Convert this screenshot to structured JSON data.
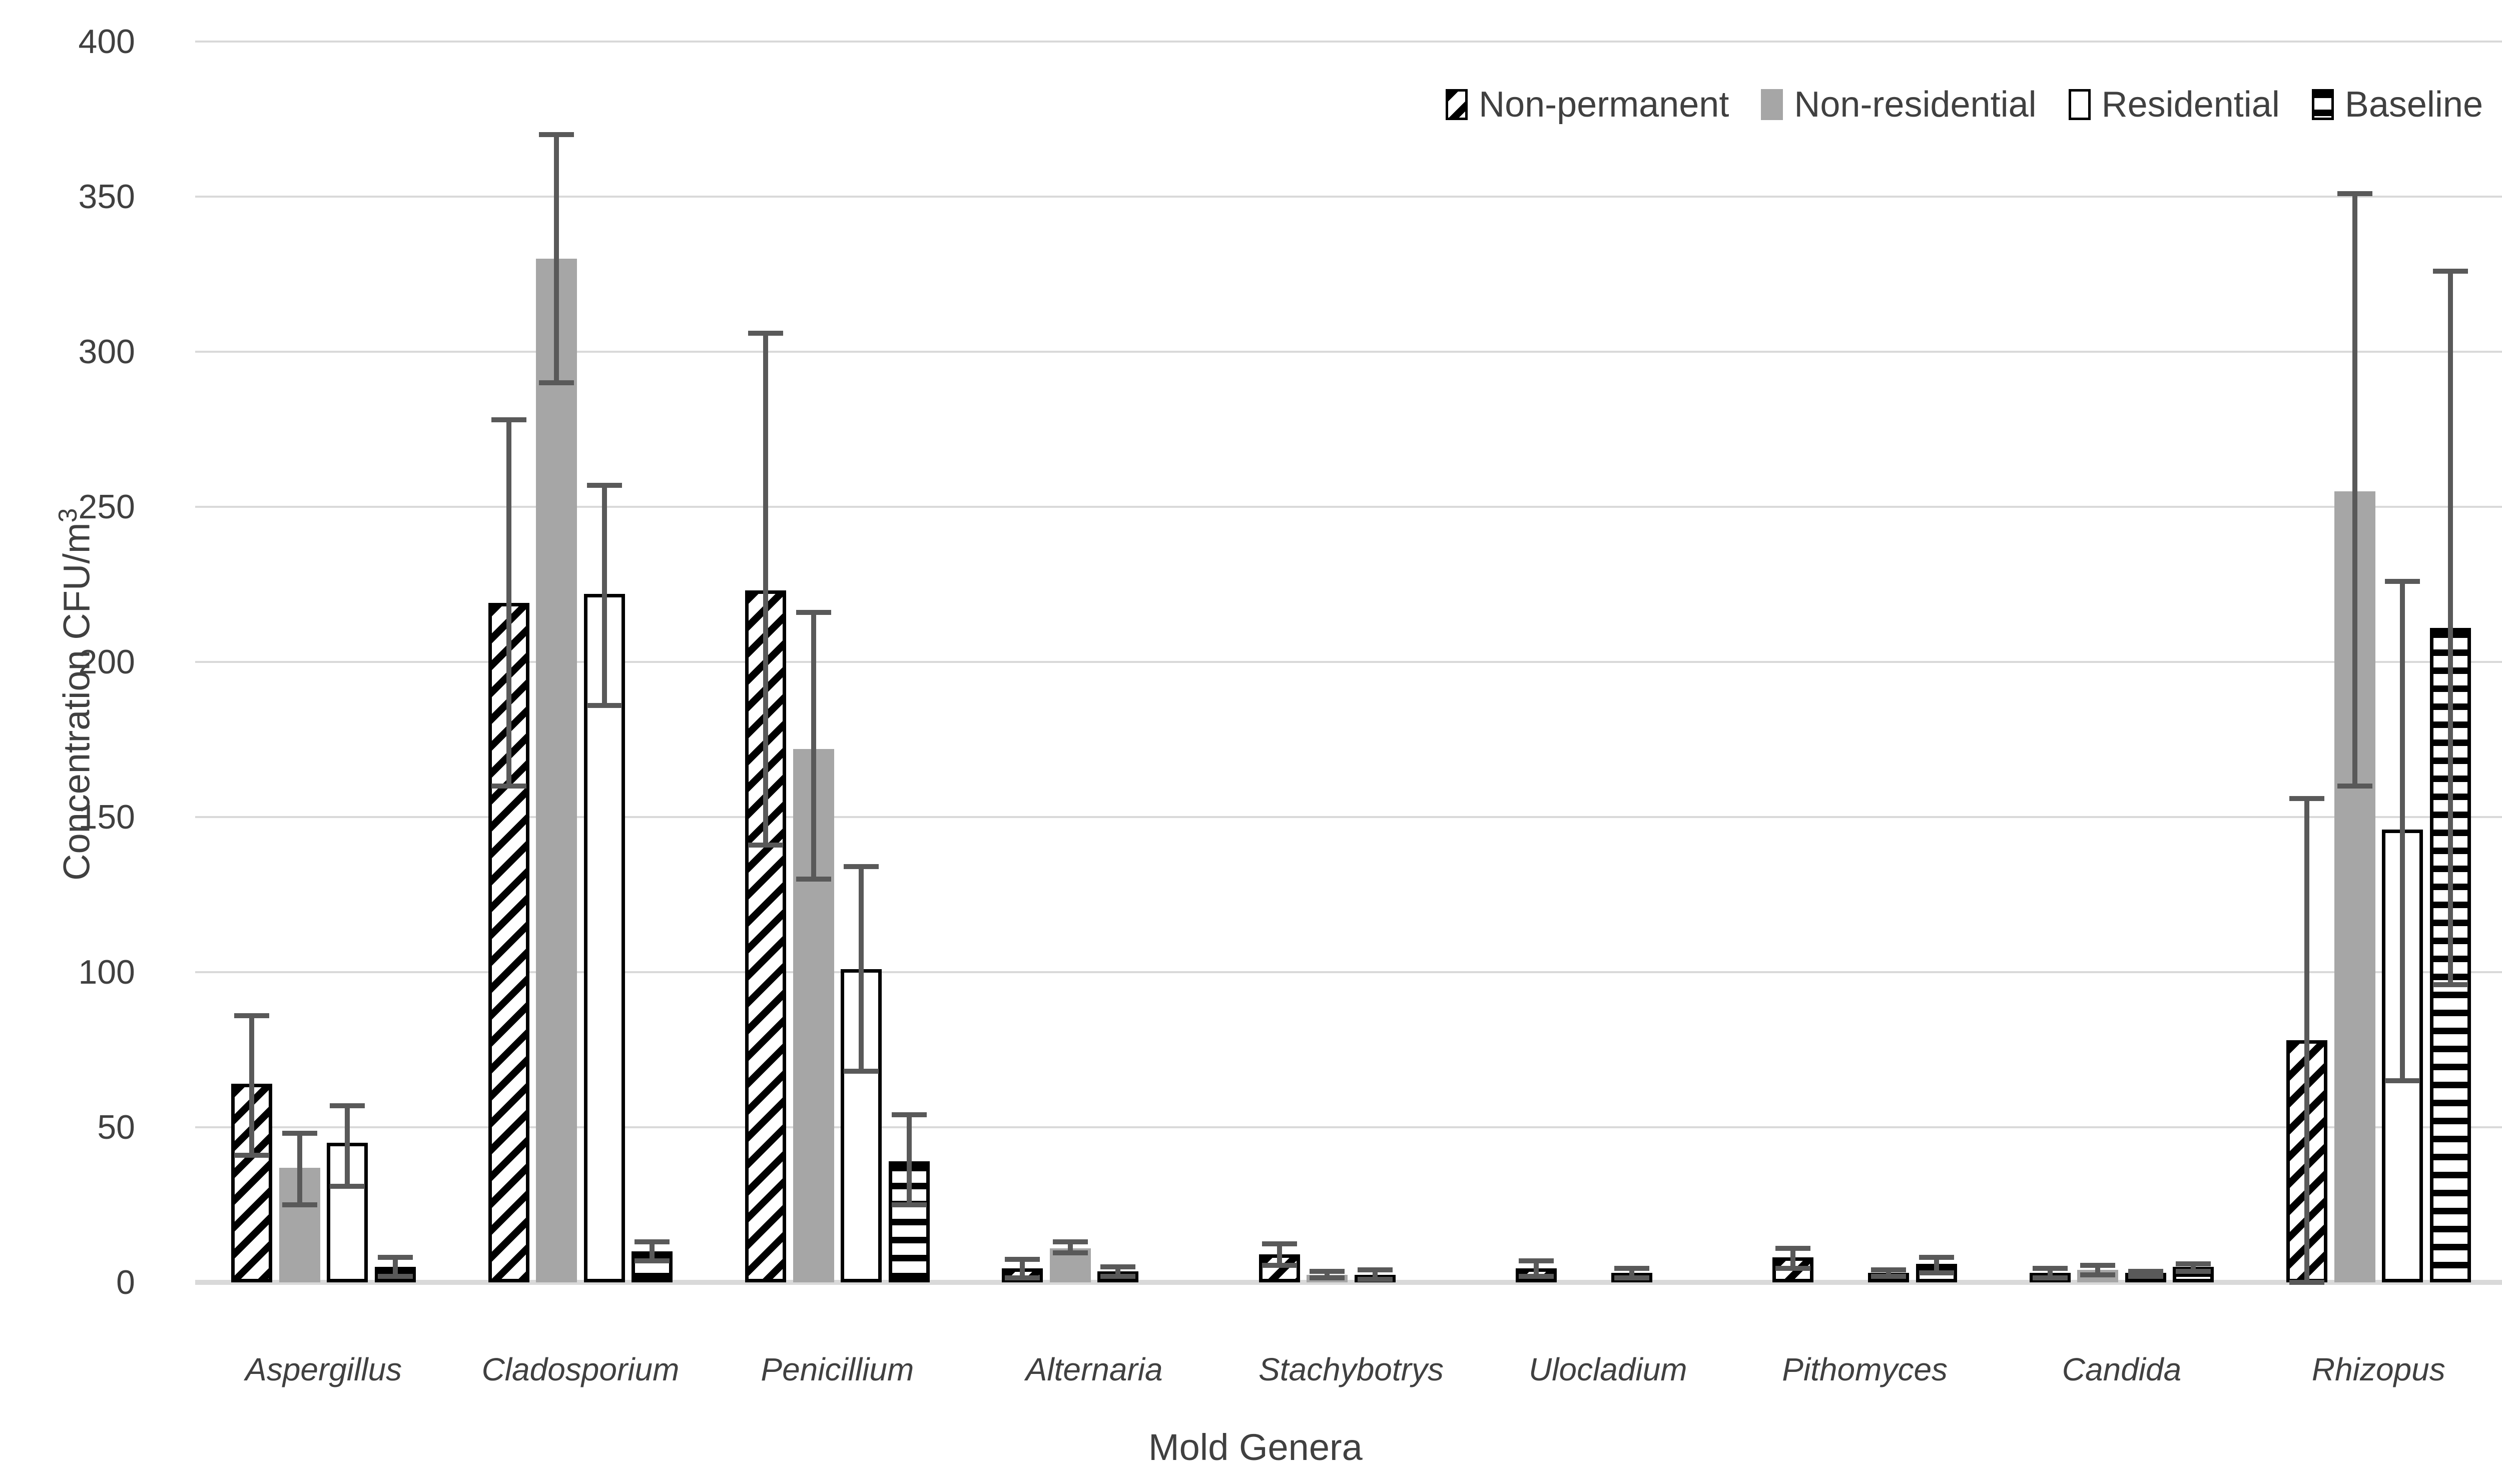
{
  "chart_data": {
    "type": "bar",
    "title": "",
    "xlabel": "Mold Genera",
    "ylabel_main": "Concentration CFU/m",
    "ylabel_superscript": "3",
    "ylim": [
      0,
      400
    ],
    "ytick_step": 50,
    "yticks": [
      "0",
      "50",
      "100",
      "150",
      "200",
      "250",
      "300",
      "350",
      "400"
    ],
    "grid": "horizontal-light-gray",
    "legend_position": "top-right",
    "categories": [
      "Aspergillus",
      "Cladosporium",
      "Penicillium",
      "Alternaria",
      "Stachybotrys",
      "Ulocladium",
      "Pithomyces",
      "Candida",
      "Rhizopus"
    ],
    "series": [
      {
        "name": "Non-permanent",
        "pattern": "diagonal-hatch",
        "fill": "#ffffff",
        "stroke": "#000000",
        "values": [
          64,
          219,
          223,
          4.5,
          9,
          4.5,
          8,
          3,
          78
        ],
        "err_low": [
          41,
          160,
          141,
          1.5,
          5.5,
          2,
          4.5,
          1.5,
          0
        ],
        "err_high": [
          86,
          278,
          306,
          7.5,
          12.5,
          7,
          11,
          4.5,
          156
        ]
      },
      {
        "name": "Non-residential",
        "pattern": "solid",
        "fill": "#a6a6a6",
        "stroke": "none",
        "values": [
          37,
          330,
          172,
          11,
          2.5,
          0,
          0,
          4,
          255
        ],
        "err_low": [
          25,
          290,
          130,
          9.5,
          1.5,
          null,
          null,
          2.5,
          160
        ],
        "err_high": [
          48,
          370,
          216,
          13,
          3.5,
          null,
          null,
          5.5,
          351
        ]
      },
      {
        "name": "Residential",
        "pattern": "solid",
        "fill": "#ffffff",
        "stroke": "#000000",
        "values": [
          45,
          222,
          101,
          3.5,
          2.5,
          3,
          3,
          3,
          146
        ],
        "err_low": [
          31,
          186,
          68,
          2,
          1,
          1.5,
          2,
          2,
          65
        ],
        "err_high": [
          57,
          257,
          134,
          5,
          4,
          4.5,
          4,
          3.5,
          226
        ]
      },
      {
        "name": "Baseline",
        "pattern": "horizontal-hatch",
        "fill": "#ffffff",
        "stroke": "#000000",
        "values": [
          5,
          10,
          39,
          0,
          0,
          0,
          6,
          5,
          211
        ],
        "err_low": [
          2,
          7,
          25,
          null,
          null,
          null,
          3,
          3.5,
          96
        ],
        "err_high": [
          8,
          13,
          54,
          null,
          null,
          null,
          8,
          6,
          326
        ]
      }
    ]
  },
  "colors": {
    "error_bar": "#595959",
    "gridline": "#d9d9d9",
    "axis_text": "#404040",
    "series_gray": "#a6a6a6",
    "background": "#ffffff"
  }
}
